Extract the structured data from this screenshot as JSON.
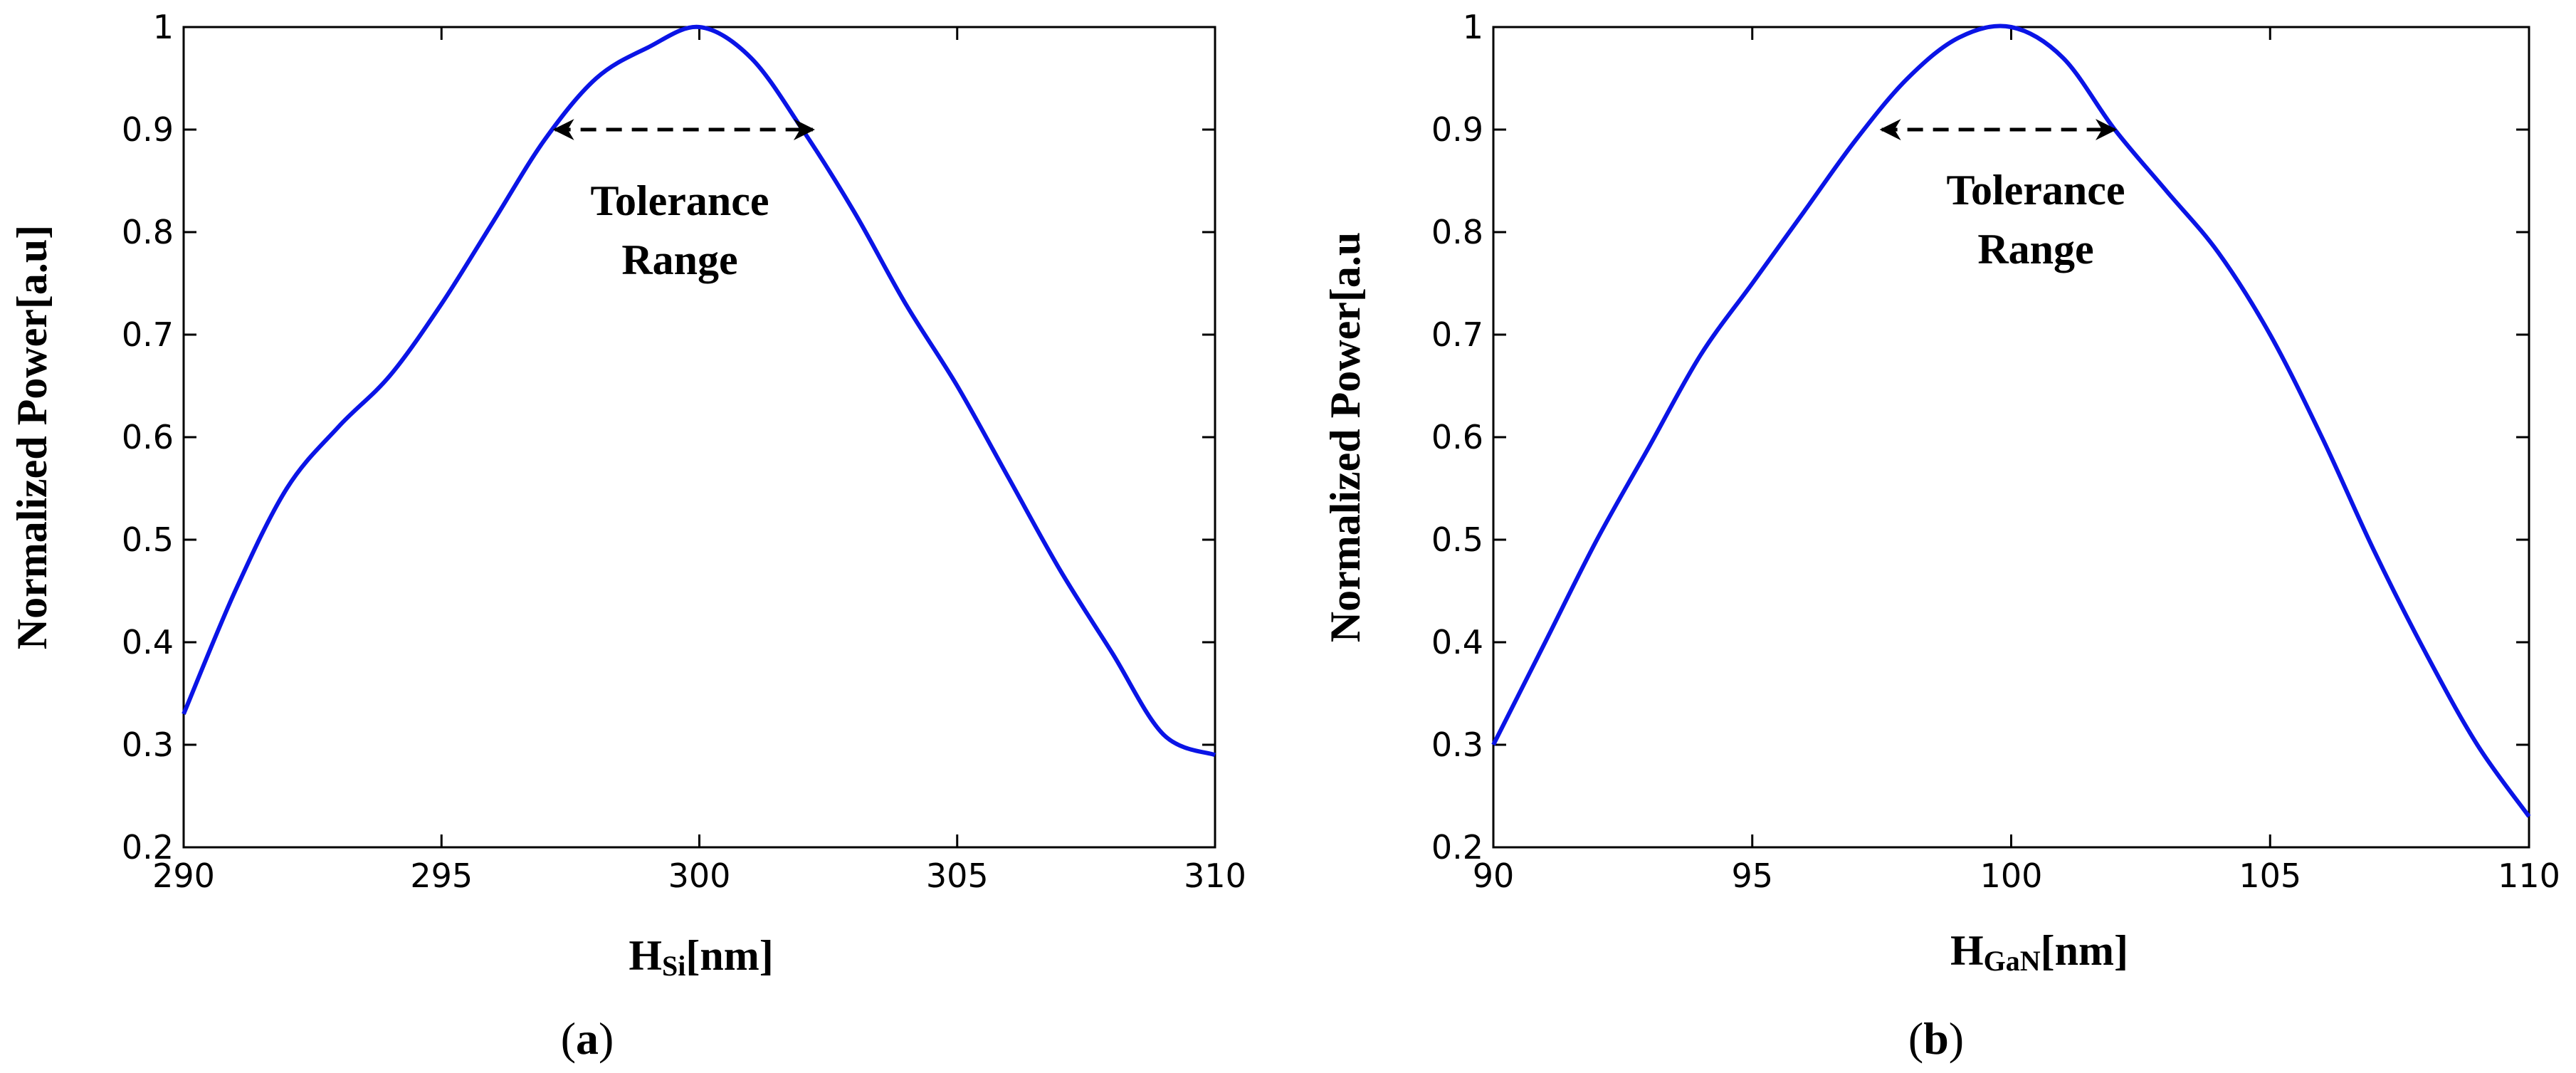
{
  "chart_data": [
    {
      "type": "line",
      "panel_label": "a",
      "xlabel_main": "H",
      "xlabel_sub": "Si",
      "xlabel_unit": "[nm]",
      "ylabel": "Normalized Power[a.u]",
      "xlim": [
        290,
        310
      ],
      "ylim": [
        0.2,
        1.0
      ],
      "xticks": [
        290,
        295,
        300,
        305,
        310
      ],
      "xtick_labels": [
        "290",
        "295",
        "300",
        "305",
        "310"
      ],
      "yticks": [
        0.2,
        0.3,
        0.4,
        0.5,
        0.6,
        0.7,
        0.8,
        0.9,
        1.0
      ],
      "ytick_labels": [
        "0.2",
        "0.3",
        "0.4",
        "0.5",
        "0.6",
        "0.7",
        "0.8",
        "0.9",
        "1"
      ],
      "grid": false,
      "series": [
        {
          "color": "#0a14e6",
          "x": [
            290,
            291,
            292,
            293,
            294,
            295,
            296,
            297,
            298,
            299,
            300,
            301,
            302,
            303,
            304,
            305,
            306,
            307,
            308,
            309,
            310
          ],
          "y": [
            0.33,
            0.45,
            0.55,
            0.61,
            0.66,
            0.73,
            0.81,
            0.89,
            0.95,
            0.98,
            1.0,
            0.97,
            0.9,
            0.82,
            0.73,
            0.65,
            0.56,
            0.47,
            0.39,
            0.31,
            0.29
          ]
        }
      ],
      "annotation": {
        "line1": "Tolerance",
        "line2": "Range",
        "arrow_x": [
          297.2,
          302.2
        ],
        "arrow_y": 0.9
      }
    },
    {
      "type": "line",
      "panel_label": "b",
      "xlabel_main": "H",
      "xlabel_sub": "GaN",
      "xlabel_unit": "[nm]",
      "ylabel": "Normalized Power[a.u",
      "xlim": [
        90,
        110
      ],
      "ylim": [
        0.2,
        1.0
      ],
      "xticks": [
        90,
        95,
        100,
        105,
        110
      ],
      "xtick_labels": [
        "90",
        "95",
        "100",
        "105",
        "110"
      ],
      "yticks": [
        0.2,
        0.3,
        0.4,
        0.5,
        0.6,
        0.7,
        0.8,
        0.9,
        1.0
      ],
      "ytick_labels": [
        "0.2",
        "0.3",
        "0.4",
        "0.5",
        "0.6",
        "0.7",
        "0.8",
        "0.9",
        "1"
      ],
      "grid": false,
      "series": [
        {
          "color": "#0a14e6",
          "x": [
            90,
            91,
            92,
            93,
            94,
            95,
            96,
            97,
            98,
            99,
            100,
            101,
            102,
            103,
            104,
            105,
            106,
            107,
            108,
            109,
            110
          ],
          "y": [
            0.3,
            0.4,
            0.5,
            0.59,
            0.68,
            0.75,
            0.82,
            0.89,
            0.95,
            0.99,
            1.0,
            0.97,
            0.9,
            0.84,
            0.78,
            0.7,
            0.6,
            0.49,
            0.39,
            0.3,
            0.23
          ]
        }
      ],
      "annotation": {
        "line1": "Tolerance",
        "line2": "Range",
        "arrow_x": [
          97.5,
          102.0
        ],
        "arrow_y": 0.9
      }
    }
  ]
}
